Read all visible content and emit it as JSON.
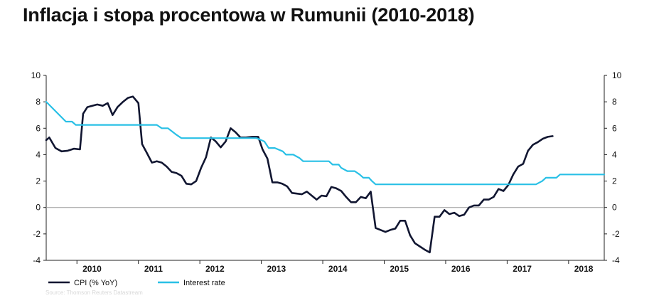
{
  "chart_data": {
    "type": "line",
    "title": "Inflacja i stopa procentowa w Rumunii (2010-2018)",
    "source": "Source: Thomson Reuters Datastream",
    "ylim": [
      -4,
      10
    ],
    "yticks": [
      -4,
      -2,
      0,
      2,
      4,
      6,
      8,
      10
    ],
    "ytick_labels_right": [
      "-4",
      "-2",
      "0",
      "2",
      "4",
      "6",
      "8",
      "10"
    ],
    "yticks_left_labels": [
      "-4",
      "-2",
      "0",
      "2",
      "4",
      "6",
      "8",
      "10"
    ],
    "xlim": [
      2009.5,
      2018.58
    ],
    "xticks": [
      {
        "value": 2010,
        "label": "2010"
      },
      {
        "value": 2011,
        "label": "2011"
      },
      {
        "value": 2012,
        "label": "2012"
      },
      {
        "value": 2013,
        "label": "2013"
      },
      {
        "value": 2014,
        "label": "2014"
      },
      {
        "value": 2015,
        "label": "2015"
      },
      {
        "value": 2016,
        "label": "2016"
      },
      {
        "value": 2017,
        "label": "2017"
      },
      {
        "value": 2018,
        "label": "2018"
      }
    ],
    "grid": false,
    "zero_line": true,
    "legend_position": "bottom-left",
    "series": [
      {
        "name": "CPI (% YoY)",
        "color": "#111631",
        "points": [
          [
            2009.5,
            5.1
          ],
          [
            2009.55,
            5.3
          ],
          [
            2009.65,
            4.5
          ],
          [
            2009.75,
            4.25
          ],
          [
            2009.85,
            4.3
          ],
          [
            2009.95,
            4.45
          ],
          [
            2010.05,
            4.4
          ],
          [
            2010.1,
            7.1
          ],
          [
            2010.17,
            7.6
          ],
          [
            2010.25,
            7.7
          ],
          [
            2010.33,
            7.8
          ],
          [
            2010.42,
            7.7
          ],
          [
            2010.5,
            7.9
          ],
          [
            2010.58,
            7.0
          ],
          [
            2010.66,
            7.6
          ],
          [
            2010.75,
            8.0
          ],
          [
            2010.83,
            8.3
          ],
          [
            2010.91,
            8.4
          ],
          [
            2011.0,
            7.9
          ],
          [
            2011.06,
            4.8
          ],
          [
            2011.13,
            4.2
          ],
          [
            2011.22,
            3.4
          ],
          [
            2011.3,
            3.5
          ],
          [
            2011.38,
            3.4
          ],
          [
            2011.46,
            3.1
          ],
          [
            2011.54,
            2.7
          ],
          [
            2011.62,
            2.6
          ],
          [
            2011.7,
            2.4
          ],
          [
            2011.78,
            1.8
          ],
          [
            2011.86,
            1.75
          ],
          [
            2011.94,
            2.0
          ],
          [
            2012.02,
            3.0
          ],
          [
            2012.1,
            3.8
          ],
          [
            2012.18,
            5.3
          ],
          [
            2012.26,
            5.0
          ],
          [
            2012.34,
            4.55
          ],
          [
            2012.42,
            5.0
          ],
          [
            2012.5,
            6.0
          ],
          [
            2012.58,
            5.7
          ],
          [
            2012.66,
            5.3
          ],
          [
            2012.75,
            5.3
          ],
          [
            2012.85,
            5.35
          ],
          [
            2012.95,
            5.35
          ],
          [
            2013.02,
            4.4
          ],
          [
            2013.1,
            3.7
          ],
          [
            2013.18,
            1.9
          ],
          [
            2013.26,
            1.9
          ],
          [
            2013.34,
            1.8
          ],
          [
            2013.42,
            1.6
          ],
          [
            2013.5,
            1.1
          ],
          [
            2013.58,
            1.05
          ],
          [
            2013.66,
            1.0
          ],
          [
            2013.74,
            1.2
          ],
          [
            2013.82,
            0.9
          ],
          [
            2013.9,
            0.6
          ],
          [
            2013.98,
            0.9
          ],
          [
            2014.06,
            0.85
          ],
          [
            2014.14,
            1.55
          ],
          [
            2014.22,
            1.45
          ],
          [
            2014.3,
            1.25
          ],
          [
            2014.38,
            0.8
          ],
          [
            2014.46,
            0.4
          ],
          [
            2014.54,
            0.4
          ],
          [
            2014.62,
            0.8
          ],
          [
            2014.7,
            0.7
          ],
          [
            2014.78,
            1.2
          ],
          [
            2014.86,
            -1.55
          ],
          [
            2014.94,
            -1.7
          ],
          [
            2015.02,
            -1.85
          ],
          [
            2015.1,
            -1.7
          ],
          [
            2015.18,
            -1.6
          ],
          [
            2015.26,
            -1.0
          ],
          [
            2015.34,
            -1.0
          ],
          [
            2015.42,
            -2.1
          ],
          [
            2015.5,
            -2.7
          ],
          [
            2015.58,
            -2.95
          ],
          [
            2015.66,
            -3.2
          ],
          [
            2015.74,
            -3.4
          ],
          [
            2015.82,
            -0.7
          ],
          [
            2015.9,
            -0.7
          ],
          [
            2015.98,
            -0.2
          ],
          [
            2016.06,
            -0.5
          ],
          [
            2016.14,
            -0.4
          ],
          [
            2016.22,
            -0.65
          ],
          [
            2016.3,
            -0.55
          ],
          [
            2016.38,
            0.0
          ],
          [
            2016.46,
            0.15
          ],
          [
            2016.54,
            0.15
          ],
          [
            2016.62,
            0.6
          ],
          [
            2016.7,
            0.6
          ],
          [
            2016.78,
            0.8
          ],
          [
            2016.86,
            1.4
          ],
          [
            2016.94,
            1.25
          ],
          [
            2017.02,
            1.7
          ],
          [
            2017.1,
            2.5
          ],
          [
            2017.18,
            3.1
          ],
          [
            2017.26,
            3.3
          ],
          [
            2017.34,
            4.3
          ],
          [
            2017.42,
            4.75
          ],
          [
            2017.5,
            4.95
          ],
          [
            2017.58,
            5.2
          ],
          [
            2017.66,
            5.35
          ],
          [
            2017.74,
            5.4
          ]
        ]
      },
      {
        "name": "Interest rate",
        "color": "#29c0e6",
        "points": [
          [
            2009.5,
            8.0
          ],
          [
            2009.82,
            6.5
          ],
          [
            2009.92,
            6.5
          ],
          [
            2009.98,
            6.25
          ],
          [
            2010.5,
            6.25
          ],
          [
            2011.3,
            6.25
          ],
          [
            2011.38,
            6.0
          ],
          [
            2011.48,
            6.0
          ],
          [
            2011.62,
            5.5
          ],
          [
            2011.7,
            5.25
          ],
          [
            2012.92,
            5.25
          ],
          [
            2013.05,
            5.0
          ],
          [
            2013.12,
            4.5
          ],
          [
            2013.22,
            4.5
          ],
          [
            2013.35,
            4.25
          ],
          [
            2013.4,
            4.0
          ],
          [
            2013.52,
            4.0
          ],
          [
            2013.62,
            3.75
          ],
          [
            2013.68,
            3.5
          ],
          [
            2014.1,
            3.5
          ],
          [
            2014.16,
            3.25
          ],
          [
            2014.26,
            3.25
          ],
          [
            2014.3,
            3.0
          ],
          [
            2014.4,
            2.75
          ],
          [
            2014.52,
            2.75
          ],
          [
            2014.6,
            2.5
          ],
          [
            2014.66,
            2.25
          ],
          [
            2014.75,
            2.25
          ],
          [
            2014.8,
            2.0
          ],
          [
            2014.86,
            1.75
          ],
          [
            2017.47,
            1.75
          ],
          [
            2017.57,
            2.0
          ],
          [
            2017.63,
            2.25
          ],
          [
            2017.8,
            2.25
          ],
          [
            2017.86,
            2.5
          ],
          [
            2018.58,
            2.5
          ]
        ]
      }
    ]
  }
}
